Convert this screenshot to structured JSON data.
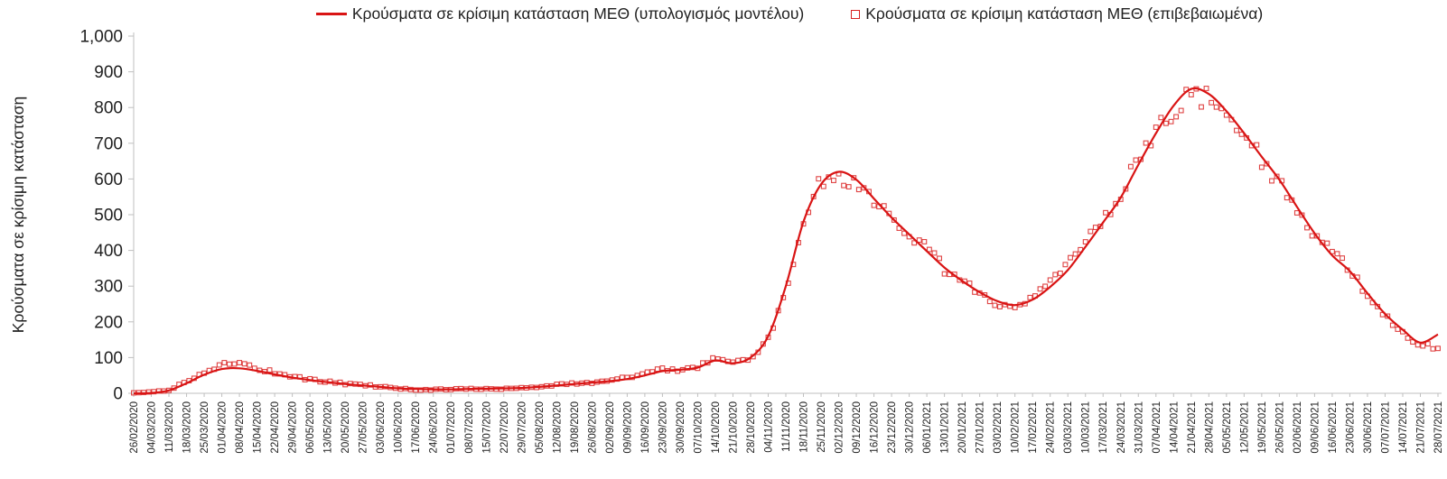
{
  "legend": [
    {
      "label": "Κρούσματα σε κρίσιμη κατάσταση ΜΕΘ (υπολογισμός μοντέλου)",
      "marker": "line",
      "color": "#d91414"
    },
    {
      "label": "Κρούσματα σε κρίσιμη κατάσταση ΜΕΘ (επιβεβαιωμένα)",
      "marker": "hollow-square",
      "color": "#d92222"
    }
  ],
  "chart_data": {
    "type": "line",
    "title": "",
    "xlabel": "",
    "ylabel": "Κρούσματα σε κρίσιμη κατάσταση",
    "ylim": [
      0,
      1000
    ],
    "ytick_interval": 100,
    "ytick_labels": [
      "0",
      "100",
      "200",
      "300",
      "400",
      "500",
      "600",
      "700",
      "800",
      "900",
      "1,000"
    ],
    "grid": false,
    "legend_position": "top",
    "axis_color": "#bfbfbf",
    "text_color": "#1f1f1f",
    "categories": [
      "26/02/2020",
      "04/03/2020",
      "11/03/2020",
      "18/03/2020",
      "25/03/2020",
      "01/04/2020",
      "08/04/2020",
      "15/04/2020",
      "22/04/2020",
      "29/04/2020",
      "06/05/2020",
      "13/05/2020",
      "20/05/2020",
      "27/05/2020",
      "03/06/2020",
      "10/06/2020",
      "17/06/2020",
      "24/06/2020",
      "01/07/2020",
      "08/07/2020",
      "15/07/2020",
      "22/07/2020",
      "29/07/2020",
      "05/08/2020",
      "12/08/2020",
      "19/08/2020",
      "26/08/2020",
      "02/09/2020",
      "09/09/2020",
      "16/09/2020",
      "23/09/2020",
      "30/09/2020",
      "07/10/2020",
      "14/10/2020",
      "21/10/2020",
      "28/10/2020",
      "04/11/2020",
      "11/11/2020",
      "18/11/2020",
      "25/11/2020",
      "02/12/2020",
      "09/12/2020",
      "16/12/2020",
      "23/12/2020",
      "30/12/2020",
      "06/01/2021",
      "13/01/2021",
      "20/01/2021",
      "27/01/2021",
      "03/02/2021",
      "10/02/2021",
      "17/02/2021",
      "24/02/2021",
      "03/03/2021",
      "10/03/2021",
      "17/03/2021",
      "24/03/2021",
      "31/03/2021",
      "07/04/2021",
      "14/04/2021",
      "21/04/2021",
      "28/04/2021",
      "05/05/2021",
      "12/05/2021",
      "19/05/2021",
      "26/05/2021",
      "02/06/2021",
      "09/06/2021",
      "16/06/2021",
      "23/06/2021",
      "30/06/2021",
      "07/07/2021",
      "14/07/2021",
      "21/07/2021",
      "28/07/2021"
    ],
    "series": [
      {
        "name": "Κρούσματα σε κρίσιμη κατάσταση ΜΕΘ (υπολογισμός μοντέλου)",
        "type": "line",
        "color": "#d91414",
        "values": [
          0,
          1,
          8,
          28,
          52,
          68,
          70,
          63,
          53,
          44,
          37,
          31,
          26,
          22,
          18,
          14,
          12,
          11,
          11,
          12,
          13,
          14,
          15,
          18,
          22,
          26,
          30,
          34,
          40,
          50,
          62,
          66,
          72,
          92,
          84,
          100,
          160,
          300,
          480,
          585,
          620,
          598,
          545,
          492,
          445,
          398,
          352,
          315,
          283,
          258,
          247,
          262,
          298,
          345,
          410,
          478,
          548,
          640,
          728,
          805,
          852,
          838,
          790,
          728,
          662,
          598,
          522,
          448,
          386,
          342,
          280,
          222,
          178,
          142,
          165
        ]
      },
      {
        "name": "Κρούσματα σε κρίσιμη κατάσταση ΜΕΘ (επιβεβαιωμένα)",
        "type": "scatter-squares",
        "color": "#d92222",
        "values": [
          0,
          2,
          10,
          32,
          60,
          80,
          88,
          70,
          58,
          47,
          38,
          32,
          27,
          23,
          18,
          13,
          11,
          10,
          11,
          12,
          13,
          14,
          15,
          19,
          24,
          28,
          31,
          36,
          44,
          54,
          68,
          64,
          74,
          100,
          86,
          98,
          150,
          290,
          470,
          600,
          605,
          590,
          540,
          488,
          450,
          402,
          348,
          310,
          278,
          252,
          245,
          268,
          305,
          355,
          430,
          490,
          560,
          650,
          740,
          790,
          835,
          830,
          780,
          720,
          655,
          590,
          515,
          440,
          395,
          350,
          272,
          215,
          170,
          135,
          128
        ]
      }
    ]
  }
}
